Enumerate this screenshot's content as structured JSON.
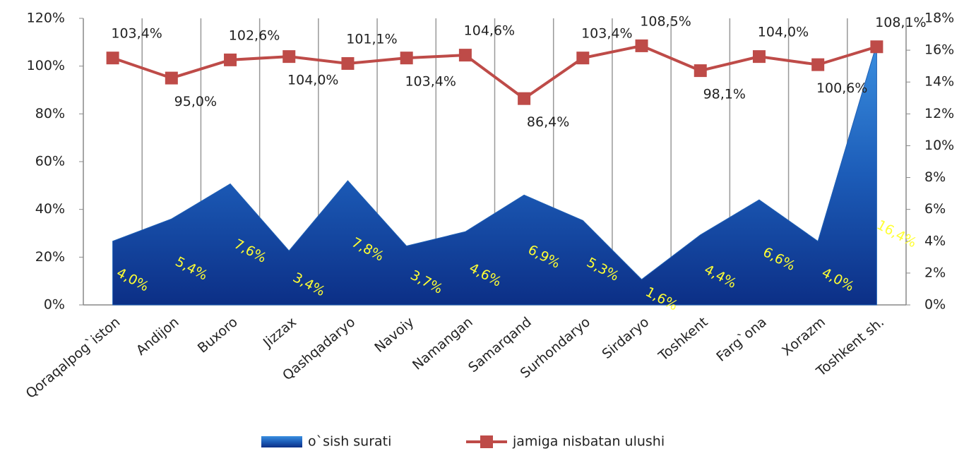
{
  "chart_data": {
    "type": "combo",
    "categories": [
      "Qoraqalpog`iston",
      "Andijon",
      "Buxoro",
      "Jizzax",
      "Qashqadaryo",
      "Navoiy",
      "Namangan",
      "Samarqand",
      "Surhondaryo",
      "Sirdaryo",
      "Toshkent",
      "Farg`ona",
      "Xorazm",
      "Toshkent sh."
    ],
    "series": [
      {
        "name": "o`sish surati",
        "type": "area",
        "axis": "y2",
        "color": "#1e5fb4",
        "values": [
          4.0,
          5.4,
          7.6,
          3.4,
          7.8,
          3.7,
          4.6,
          6.9,
          5.3,
          1.6,
          4.4,
          6.6,
          4.0,
          16.4
        ],
        "value_labels": [
          "4,0%",
          "5,4%",
          "7,6%",
          "3,4%",
          "7,8%",
          "3,7%",
          "4,6%",
          "6,9%",
          "5,3%",
          "1,6%",
          "4,4%",
          "6,6%",
          "4,0%",
          "16,4%"
        ]
      },
      {
        "name": "jamiga nisbatan ulushi",
        "type": "line",
        "axis": "y",
        "color": "#be4b48",
        "values": [
          103.4,
          95.0,
          102.6,
          104.0,
          101.1,
          103.4,
          104.6,
          86.4,
          103.4,
          108.5,
          98.1,
          104.0,
          100.6,
          108.1
        ],
        "value_labels": [
          "103,4%",
          "95,0%",
          "102,6%",
          "104,0%",
          "101,1%",
          "103,4%",
          "104,6%",
          "86,4%",
          "103,4%",
          "108,5%",
          "98,1%",
          "104,0%",
          "100,6%",
          "108,1%"
        ]
      }
    ],
    "ylim": [
      0,
      120
    ],
    "yticks": [
      {
        "value": 0,
        "label": "0%"
      },
      {
        "value": 20,
        "label": "20%"
      },
      {
        "value": 40,
        "label": "40%"
      },
      {
        "value": 60,
        "label": "60%"
      },
      {
        "value": 80,
        "label": "80%"
      },
      {
        "value": 100,
        "label": "100%"
      },
      {
        "value": 120,
        "label": "120%"
      }
    ],
    "y2lim": [
      0,
      18
    ],
    "y2ticks": [
      {
        "value": 0,
        "label": "0%"
      },
      {
        "value": 2,
        "label": "2%"
      },
      {
        "value": 4,
        "label": "4%"
      },
      {
        "value": 6,
        "label": "6%"
      },
      {
        "value": 8,
        "label": "8%"
      },
      {
        "value": 10,
        "label": "10%"
      },
      {
        "value": 12,
        "label": "12%"
      },
      {
        "value": 14,
        "label": "14%"
      },
      {
        "value": 16,
        "label": "16%"
      },
      {
        "value": 18,
        "label": "18%"
      }
    ],
    "legend": "bottom"
  }
}
